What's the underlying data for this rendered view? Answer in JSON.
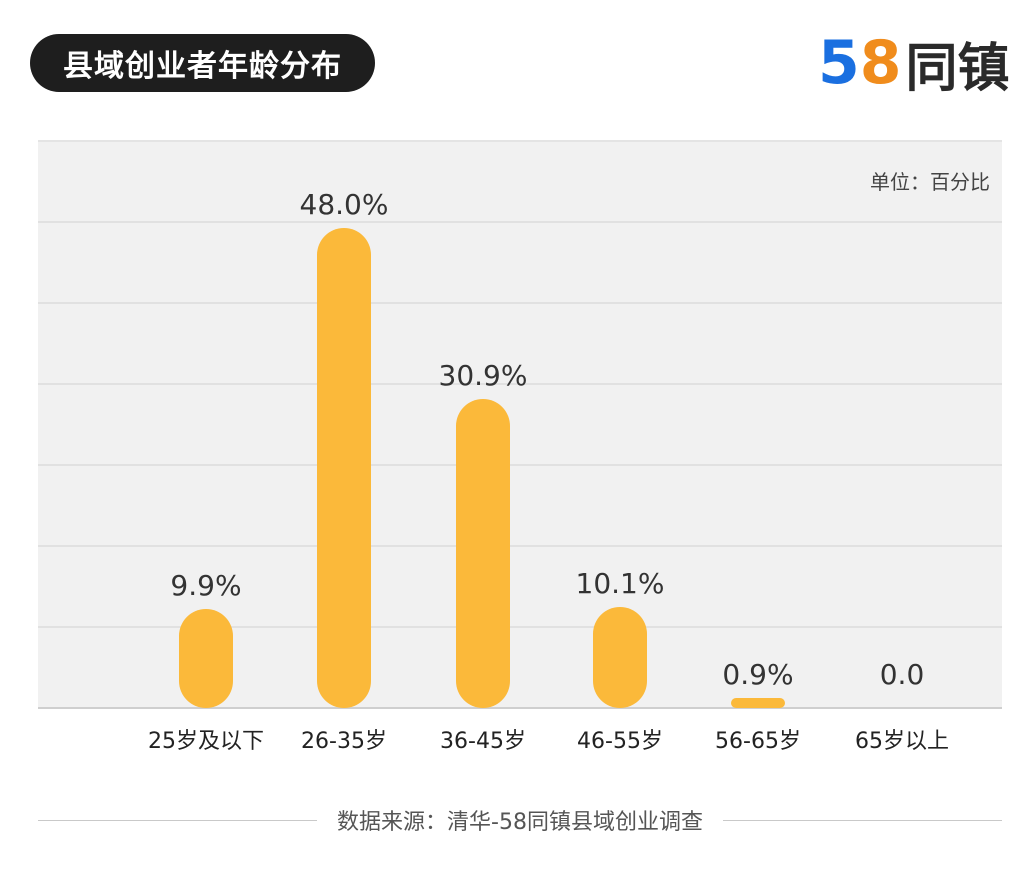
{
  "title": "县域创业者年龄分布",
  "logo": {
    "num1": "5",
    "num2": "8",
    "text": "同镇"
  },
  "unit_label": "单位：百分比",
  "source": "数据来源：清华-58同镇县域创业调查",
  "colors": {
    "bar": "#fbb93a",
    "title_bg": "#1e1e1e",
    "plot_bg": "#f1f1f1",
    "grid": "#dcdcdc"
  },
  "chart_data": {
    "type": "bar",
    "categories": [
      "25岁及以下",
      "26-35岁",
      "36-45岁",
      "46-55岁",
      "56-65岁",
      "65岁以上"
    ],
    "values": [
      9.9,
      48.0,
      30.9,
      10.1,
      0.9,
      0.0
    ],
    "value_labels": [
      "9.9%",
      "48.0%",
      "30.9%",
      "10.1%",
      "0.9%",
      "0.0"
    ],
    "title": "县域创业者年龄分布",
    "ylim": [
      0,
      56
    ],
    "grid": true
  }
}
